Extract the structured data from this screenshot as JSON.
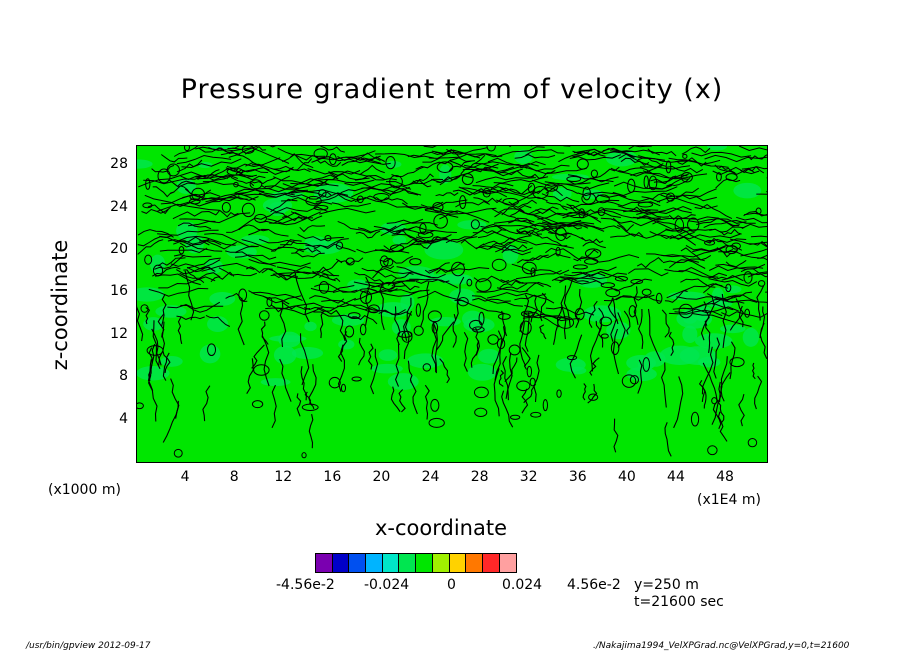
{
  "chart_data": {
    "type": "heatmap",
    "title": "Pressure gradient term of velocity (x)",
    "xlabel": "x-coordinate",
    "ylabel": "z-coordinate",
    "x_unit": "(x1E4 m)",
    "y_unit": "(x1000 m)",
    "xlim": [
      0,
      51.5
    ],
    "ylim": [
      0,
      30
    ],
    "x_ticks": [
      "4",
      "8",
      "12",
      "16",
      "20",
      "24",
      "28",
      "32",
      "36",
      "40",
      "44",
      "48"
    ],
    "x_tick_values": [
      4,
      8,
      12,
      16,
      20,
      24,
      28,
      32,
      36,
      40,
      44,
      48
    ],
    "y_ticks": [
      "4",
      "8",
      "12",
      "16",
      "20",
      "24",
      "28"
    ],
    "y_tick_values": [
      4,
      8,
      12,
      16,
      20,
      24,
      28
    ],
    "colorbar": {
      "colors": [
        "#7a00b0",
        "#0000c8",
        "#0050f0",
        "#00b4ff",
        "#00e6c8",
        "#00e650",
        "#00e600",
        "#a0f000",
        "#ffd200",
        "#ff7800",
        "#ff2828",
        "#ffa0a0"
      ],
      "labels": [
        "-4.56e-2",
        "-0.024",
        "0",
        "0.024",
        "4.56e-2"
      ],
      "label_values": [
        -0.0456,
        -0.024,
        0,
        0.024,
        0.0456
      ]
    },
    "annotation": {
      "y": "y=250 m",
      "t": "t=21600 sec"
    }
  },
  "footer": {
    "left": "/usr/bin/gpview   2012-09-17",
    "right": "./Nakajima1994_VelXPGrad.nc@VelXPGrad,y=0,t=21600"
  }
}
